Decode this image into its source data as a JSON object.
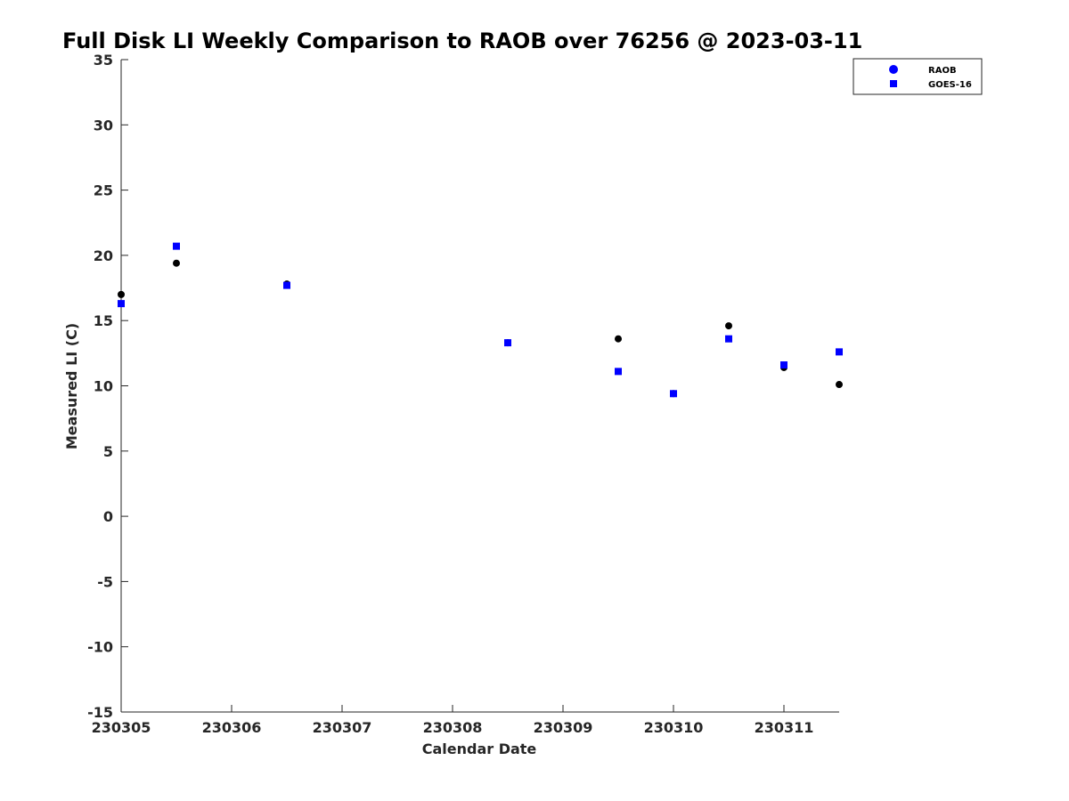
{
  "chart_data": {
    "type": "scatter",
    "title": "Full Disk LI Weekly Comparison to RAOB over 76256 @ 2023-03-11",
    "xlabel": "Calendar Date",
    "ylabel": "Measured LI (C)",
    "xlim": [
      "2023-03-05",
      "2023-03-11 12:00"
    ],
    "ylim": [
      -15,
      35
    ],
    "x_ticks": [
      "230305",
      "230306",
      "230307",
      "230308",
      "230309",
      "230310",
      "230311"
    ],
    "y_ticks": [
      35,
      30,
      25,
      20,
      15,
      10,
      5,
      0,
      -5,
      -10,
      -15
    ],
    "grid": false,
    "legend_position": "top-right",
    "series": [
      {
        "name": "RAOB",
        "marker": "circle",
        "color": "#000000",
        "legend_color": "#0000ff",
        "points": [
          {
            "x": "2023-03-05 00:00",
            "y": 17.0
          },
          {
            "x": "2023-03-05 12:00",
            "y": 19.4
          },
          {
            "x": "2023-03-06 12:00",
            "y": 17.8
          },
          {
            "x": "2023-03-08 12:00",
            "y": 13.3
          },
          {
            "x": "2023-03-09 12:00",
            "y": 13.6
          },
          {
            "x": "2023-03-10 00:00",
            "y": 9.4
          },
          {
            "x": "2023-03-10 12:00",
            "y": 14.6
          },
          {
            "x": "2023-03-11 00:00",
            "y": 11.4
          },
          {
            "x": "2023-03-11 12:00",
            "y": 10.1
          }
        ]
      },
      {
        "name": "GOES-16",
        "marker": "square",
        "color": "#0000ff",
        "legend_color": "#0000ff",
        "points": [
          {
            "x": "2023-03-05 00:00",
            "y": 16.3
          },
          {
            "x": "2023-03-05 12:00",
            "y": 20.7
          },
          {
            "x": "2023-03-06 12:00",
            "y": 17.7
          },
          {
            "x": "2023-03-08 12:00",
            "y": 13.3
          },
          {
            "x": "2023-03-09 12:00",
            "y": 11.1
          },
          {
            "x": "2023-03-10 00:00",
            "y": 9.4
          },
          {
            "x": "2023-03-10 12:00",
            "y": 13.6
          },
          {
            "x": "2023-03-11 00:00",
            "y": 11.6
          },
          {
            "x": "2023-03-11 12:00",
            "y": 12.6
          }
        ]
      }
    ]
  }
}
